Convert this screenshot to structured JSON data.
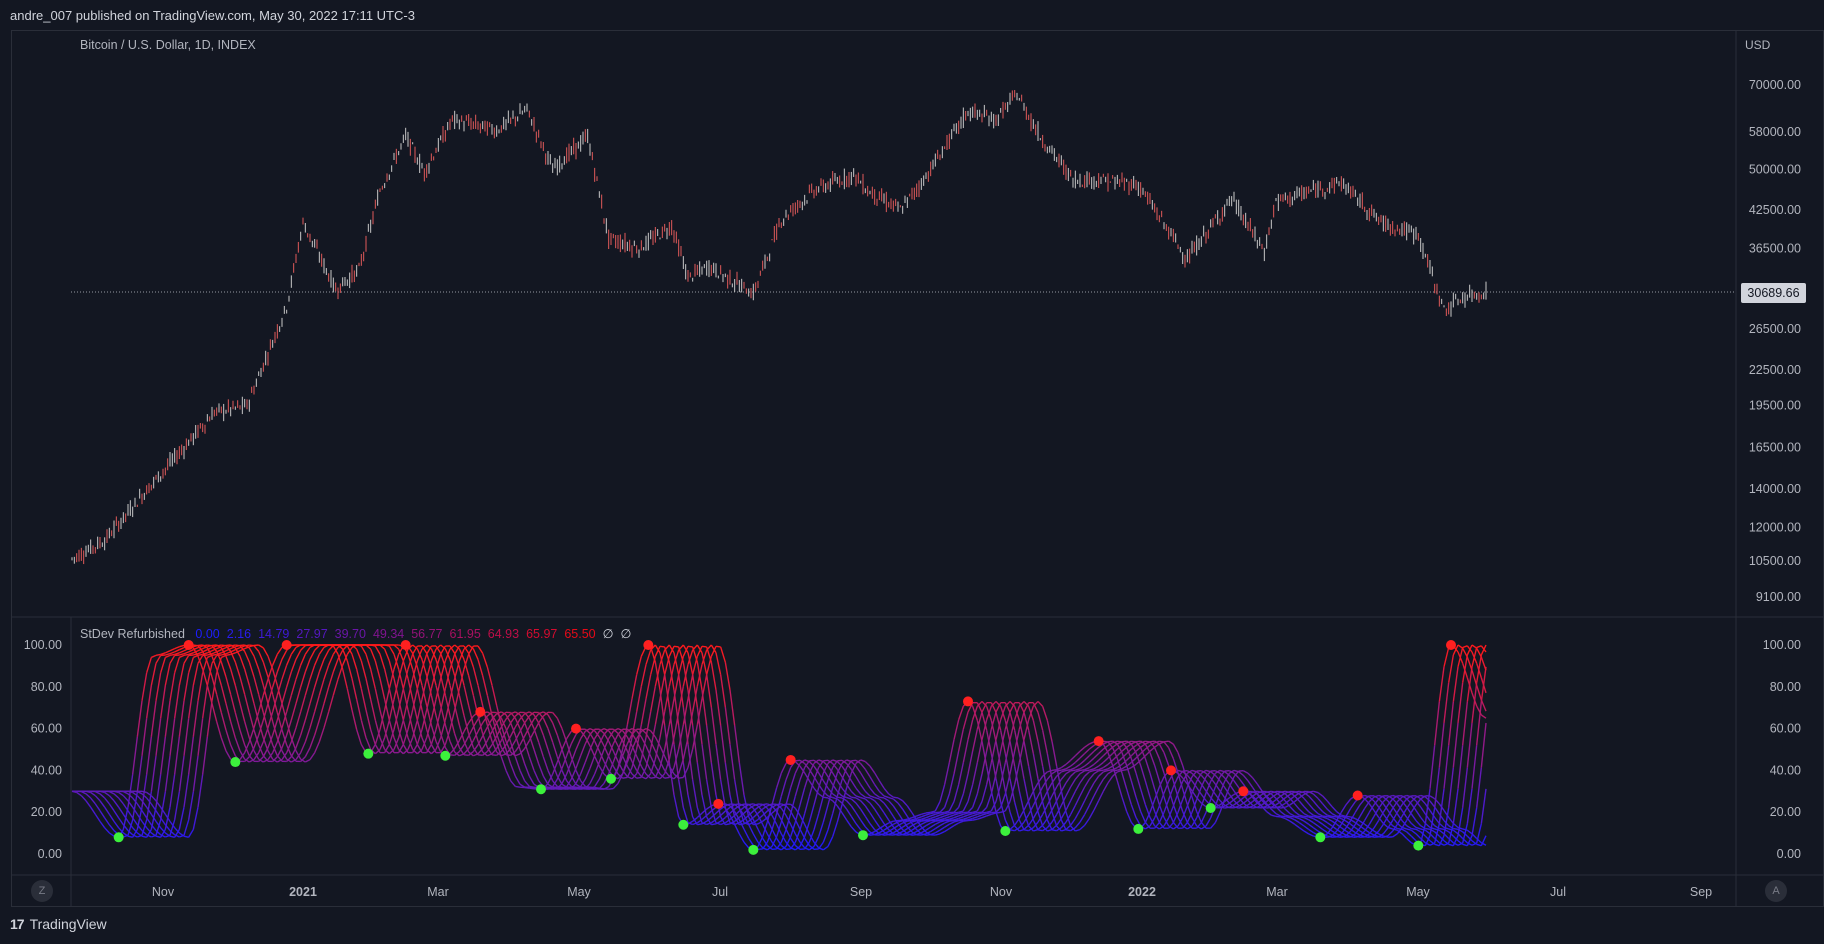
{
  "header": {
    "publish_line": "andre_007 published on TradingView.com, May 30, 2022 17:11 UTC-3"
  },
  "main_pane": {
    "symbol_title": "Bitcoin / U.S. Dollar, 1D, INDEX",
    "currency": "USD",
    "last_price_label": "30689.66",
    "price_axis_labels": [
      "70000.00",
      "58000.00",
      "50000.00",
      "42500.00",
      "36500.00",
      "26500.00",
      "22500.00",
      "19500.00",
      "16500.00",
      "14000.00",
      "12000.00",
      "10500.00",
      "9100.00"
    ]
  },
  "indicator_pane": {
    "name": "StDev Refurbished",
    "values": [
      "0.00",
      "2.16",
      "14.79",
      "27.97",
      "39.70",
      "49.34",
      "56.77",
      "61.95",
      "64.93",
      "65.97",
      "65.50",
      "∅",
      "∅"
    ],
    "value_colors": [
      "#1e1eff",
      "#2a1cf0",
      "#3f1ad8",
      "#5518c0",
      "#6a16a8",
      "#801490",
      "#951278",
      "#aa1060",
      "#bf0e48",
      "#d40c30",
      "#e80a18",
      "#d1d4dc",
      "#d1d4dc"
    ],
    "axis_labels": [
      "100.00",
      "80.00",
      "60.00",
      "40.00",
      "20.00",
      "0.00"
    ]
  },
  "time_axis": {
    "labels": [
      "Nov",
      "2021",
      "Mar",
      "May",
      "Jul",
      "Sep",
      "Nov",
      "2022",
      "Mar",
      "May",
      "Jul",
      "Sep"
    ]
  },
  "buttons": {
    "z_label": "Z",
    "a_label": "A"
  },
  "footer": {
    "brand_text": "TradingView"
  },
  "colors": {
    "background": "#131722",
    "candle_up": "#c8c8c8",
    "candle_down": "#e05a5a",
    "osc_high": "#ff1a1a",
    "osc_low": "#1a1aff",
    "dot_green": "#3cf03c",
    "dot_red": "#ff2020"
  },
  "chart_data": [
    {
      "type": "line",
      "title": "Bitcoin / U.S. Dollar, 1D, INDEX",
      "y_scale": "log",
      "ylabel": "USD",
      "ylim": [
        8500,
        78000
      ],
      "x": [
        "2020-10-01",
        "2020-10-15",
        "2020-11-01",
        "2020-11-15",
        "2020-12-01",
        "2020-12-15",
        "2021-01-01",
        "2021-01-08",
        "2021-01-22",
        "2021-02-01",
        "2021-02-10",
        "2021-02-21",
        "2021-03-01",
        "2021-03-13",
        "2021-04-01",
        "2021-04-14",
        "2021-04-25",
        "2021-05-10",
        "2021-05-19",
        "2021-06-01",
        "2021-06-15",
        "2021-06-22",
        "2021-07-01",
        "2021-07-20",
        "2021-08-01",
        "2021-08-15",
        "2021-09-01",
        "2021-09-07",
        "2021-09-21",
        "2021-10-01",
        "2021-10-20",
        "2021-11-01",
        "2021-11-10",
        "2021-11-20",
        "2021-12-04",
        "2021-12-15",
        "2022-01-01",
        "2022-01-22",
        "2022-02-10",
        "2022-02-24",
        "2022-03-01",
        "2022-03-29",
        "2022-04-15",
        "2022-05-01",
        "2022-05-09",
        "2022-05-12",
        "2022-05-20",
        "2022-05-30"
      ],
      "series": [
        {
          "values": [
            10600,
            11400,
            13800,
            16000,
            19000,
            19500,
            29000,
            40500,
            31000,
            33500,
            46000,
            57000,
            49500,
            61000,
            58500,
            63500,
            50000,
            57000,
            38000,
            36500,
            40000,
            32500,
            34000,
            30500,
            41000,
            46000,
            49000,
            46000,
            42500,
            48000,
            63000,
            61000,
            67500,
            57000,
            48000,
            48000,
            47000,
            35000,
            44500,
            36000,
            44000,
            47500,
            40500,
            38500,
            31000,
            28500,
            30000,
            30689
          ]
        }
      ]
    },
    {
      "type": "line",
      "title": "StDev Refurbished",
      "ylim": [
        0,
        100
      ],
      "x": [
        "2020-10-01",
        "2020-10-21",
        "2020-11-05",
        "2020-11-20",
        "2020-12-10",
        "2021-01-01",
        "2021-01-20",
        "2021-02-05",
        "2021-02-21",
        "2021-03-10",
        "2021-03-25",
        "2021-04-10",
        "2021-04-20",
        "2021-05-05",
        "2021-05-20",
        "2021-06-05",
        "2021-06-20",
        "2021-07-05",
        "2021-07-20",
        "2021-08-05",
        "2021-08-20",
        "2021-09-05",
        "2021-09-20",
        "2021-10-05",
        "2021-10-20",
        "2021-11-05",
        "2021-11-25",
        "2021-12-15",
        "2022-01-01",
        "2022-01-15",
        "2022-02-01",
        "2022-02-15",
        "2022-03-01",
        "2022-03-20",
        "2022-04-05",
        "2022-04-20",
        "2022-05-01",
        "2022-05-15",
        "2022-05-30"
      ],
      "series": [
        {
          "values": [
            30,
            8,
            95,
            100,
            44,
            100,
            100,
            48,
            100,
            47,
            68,
            32,
            31,
            60,
            36,
            100,
            14,
            24,
            2,
            45,
            27,
            9,
            16,
            20,
            73,
            11,
            40,
            54,
            12,
            40,
            22,
            30,
            18,
            8,
            28,
            12,
            4,
            100,
            65
          ]
        }
      ]
    }
  ]
}
